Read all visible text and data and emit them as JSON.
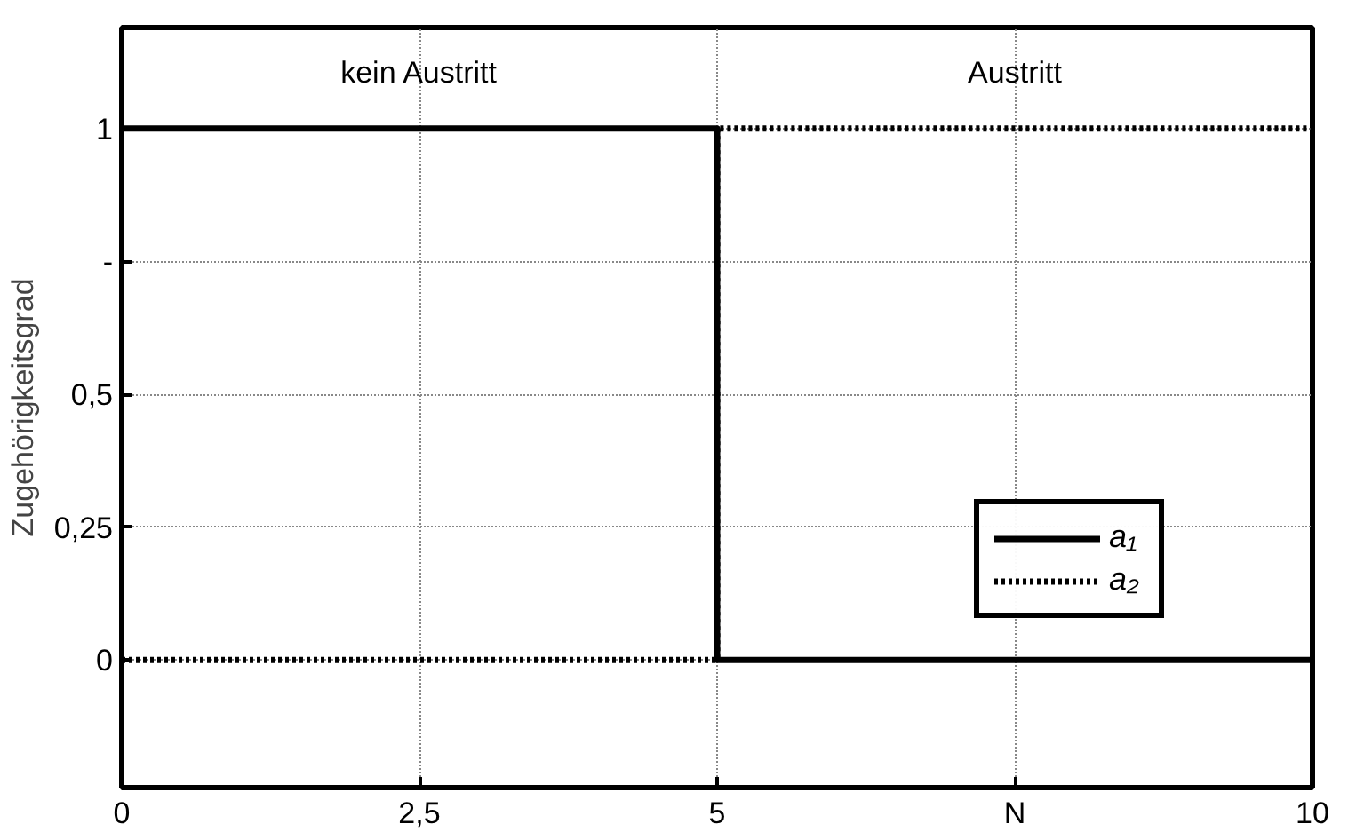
{
  "chart_data": {
    "type": "line",
    "ylabel": "Zugehörigkeitsgrad",
    "xlim": [
      0,
      10
    ],
    "xticks": [
      0,
      {
        "value": 2.5,
        "label": "2,5"
      },
      5,
      {
        "value": 7.5,
        "label": "N"
      },
      10
    ],
    "ylim": [
      -0.24,
      1.19
    ],
    "yticks": [
      0,
      {
        "value": 0.25,
        "label": "0,25"
      },
      {
        "value": 0.5,
        "label": "0,5"
      },
      {
        "value": 0.75,
        "label": "-"
      },
      1
    ],
    "series": [
      {
        "name": "a₁",
        "color": "#000000",
        "x": [
          0,
          5,
          5,
          10
        ],
        "values": [
          1,
          1,
          0,
          0
        ],
        "line_style": "solid"
      },
      {
        "name": "a₂",
        "color": "#000000",
        "x": [
          0,
          5,
          5,
          10
        ],
        "values": [
          0,
          0,
          1,
          1
        ],
        "line_style": "dotted"
      }
    ],
    "annotations": [
      "kein Austritt",
      "Austritt"
    ],
    "grid": true,
    "legend": "bottom right",
    "marker": "none"
  }
}
